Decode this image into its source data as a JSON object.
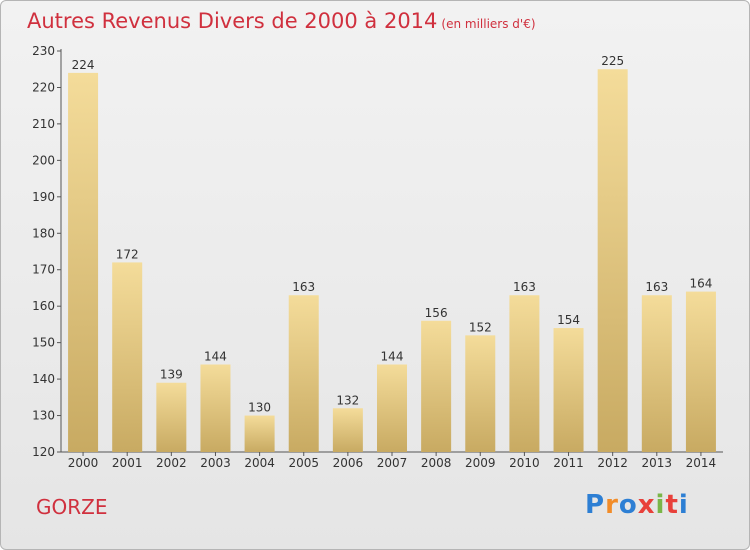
{
  "title": "Autres Revenus Divers de 2000 à 2014",
  "subtitle": "(en milliers d'€)",
  "commune": "GORZE",
  "logo": {
    "text": "Proxiti",
    "letters": [
      "P",
      "r",
      "o",
      "x",
      "i",
      "t",
      "i"
    ]
  },
  "colors": {
    "title": "#d0303e",
    "bar_light": "#f4dc9a",
    "bar_dark": "#c8aa62"
  },
  "chart_data": {
    "type": "bar",
    "title": "Autres Revenus Divers de 2000 à 2014",
    "subtitle": "(en milliers d'€)",
    "xlabel": "",
    "ylabel": "",
    "categories": [
      "2000",
      "2001",
      "2002",
      "2003",
      "2004",
      "2005",
      "2006",
      "2007",
      "2008",
      "2009",
      "2010",
      "2011",
      "2012",
      "2013",
      "2014"
    ],
    "values": [
      224,
      172,
      139,
      144,
      130,
      163,
      132,
      144,
      156,
      152,
      163,
      154,
      225,
      163,
      164
    ],
    "ylim": [
      120,
      230
    ],
    "yticks": [
      120,
      130,
      140,
      150,
      160,
      170,
      180,
      190,
      200,
      210,
      220,
      230
    ],
    "grid": false,
    "legend": "none"
  }
}
